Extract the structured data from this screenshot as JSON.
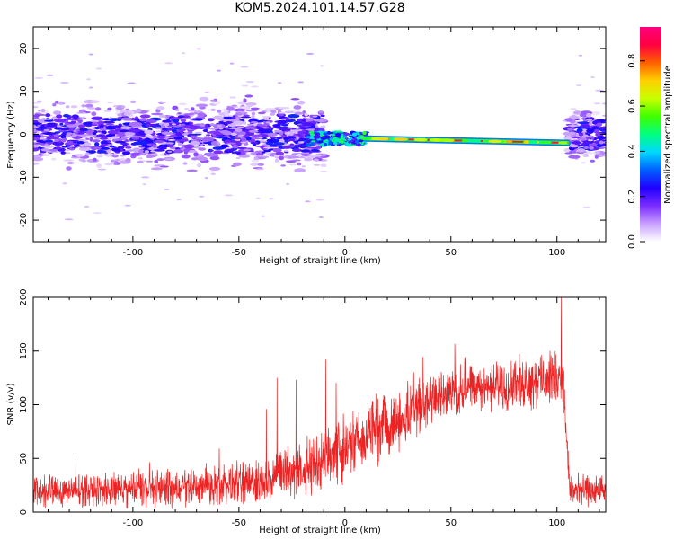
{
  "title": "KOM5.2024.101.14.57.G28",
  "chart_data": [
    {
      "type": "heatmap",
      "xlabel": "Height of straight line (km)",
      "ylabel": "Frequency (Hz)",
      "xlim": [
        -147,
        123
      ],
      "ylim": [
        -25,
        25
      ],
      "xticks": [
        -100,
        -50,
        0,
        50,
        100
      ],
      "yticks": [
        20,
        10,
        0,
        -10,
        -20
      ],
      "colorbar": {
        "label": "Normalized spectral amplitude",
        "ticks": [
          "0.0",
          "0.2",
          "0.4",
          "0.6",
          "0.8"
        ],
        "range": [
          0,
          0.95
        ],
        "colors": [
          "#ffffff",
          "#c8a0ff",
          "#7b2cff",
          "#2000ff",
          "#0060ff",
          "#00d8ff",
          "#00ff80",
          "#40ff00",
          "#c8ff00",
          "#ffd000",
          "#ff6000",
          "#ff0040",
          "#ff0080"
        ]
      },
      "features": [
        {
          "name": "noise band",
          "x_range": [
            -147,
            -10
          ],
          "freq_range": [
            -10,
            10
          ],
          "amplitude": 0.1
        },
        {
          "name": "signal onset",
          "x_range": [
            -18,
            10
          ],
          "freq_center": -1,
          "amplitude": 0.4
        },
        {
          "name": "carrier",
          "x_range": [
            10,
            105
          ],
          "freq_start": -1.0,
          "freq_end": -2.0,
          "amplitude": 0.95
        },
        {
          "name": "noise band",
          "x_range": [
            105,
            123
          ],
          "freq_range": [
            -8,
            8
          ],
          "amplitude": 0.1
        }
      ]
    },
    {
      "type": "line",
      "xlabel": "Height of straight line (km)",
      "ylabel": "SNR (v/v)",
      "xlim": [
        -147,
        123
      ],
      "ylim": [
        0,
        200
      ],
      "xticks": [
        -100,
        -50,
        0,
        50,
        100
      ],
      "yticks": [
        0,
        50,
        100,
        150,
        200
      ],
      "color": "#ee2222",
      "trend": [
        {
          "x": -147,
          "mean": 20,
          "spread": 12
        },
        {
          "x": -70,
          "mean": 22,
          "spread": 14
        },
        {
          "x": -40,
          "mean": 30,
          "spread": 18
        },
        {
          "x": -20,
          "mean": 40,
          "spread": 22
        },
        {
          "x": 0,
          "mean": 60,
          "spread": 25
        },
        {
          "x": 20,
          "mean": 80,
          "spread": 25
        },
        {
          "x": 45,
          "mean": 110,
          "spread": 20
        },
        {
          "x": 100,
          "mean": 125,
          "spread": 20
        },
        {
          "x": 103,
          "mean": 125,
          "spread": 20
        },
        {
          "x": 106,
          "mean": 20,
          "spread": 12
        },
        {
          "x": 123,
          "mean": 20,
          "spread": 12
        }
      ],
      "peaks": [
        {
          "x": -37,
          "y": 96
        },
        {
          "x": -32,
          "y": 125
        },
        {
          "x": -23,
          "y": 123
        },
        {
          "x": -9,
          "y": 142
        },
        {
          "x": 102,
          "y": 200
        }
      ]
    }
  ]
}
